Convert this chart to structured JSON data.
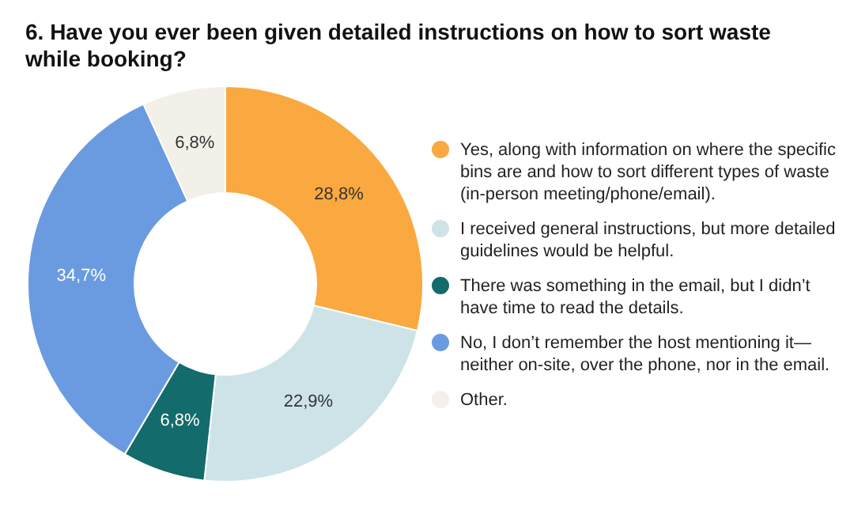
{
  "chart_data": {
    "type": "donut",
    "title": "6. Have you ever been given detailed instructions on how to sort waste while booking?",
    "categories": [
      "Yes, along with information on where the specific bins are and how to sort different types of waste (in-person meeting/phone/email).",
      "I received general instructions, but more detailed guidelines would be helpful.",
      "There was something in the email, but I didn’t have time to read the details.",
      "No, I don’t remember the host mentioning it—neither on-site, over the phone, nor in the email.",
      "Other."
    ],
    "values": [
      28.8,
      22.9,
      6.8,
      34.7,
      6.8
    ],
    "value_labels": [
      "28,8%",
      "22,9%",
      "6,8%",
      "34,7%",
      "6,8%"
    ],
    "colors": [
      "#f9a93f",
      "#cde3e8",
      "#136b6b",
      "#6a9be0",
      "#f3efe9"
    ],
    "legend": "right"
  }
}
